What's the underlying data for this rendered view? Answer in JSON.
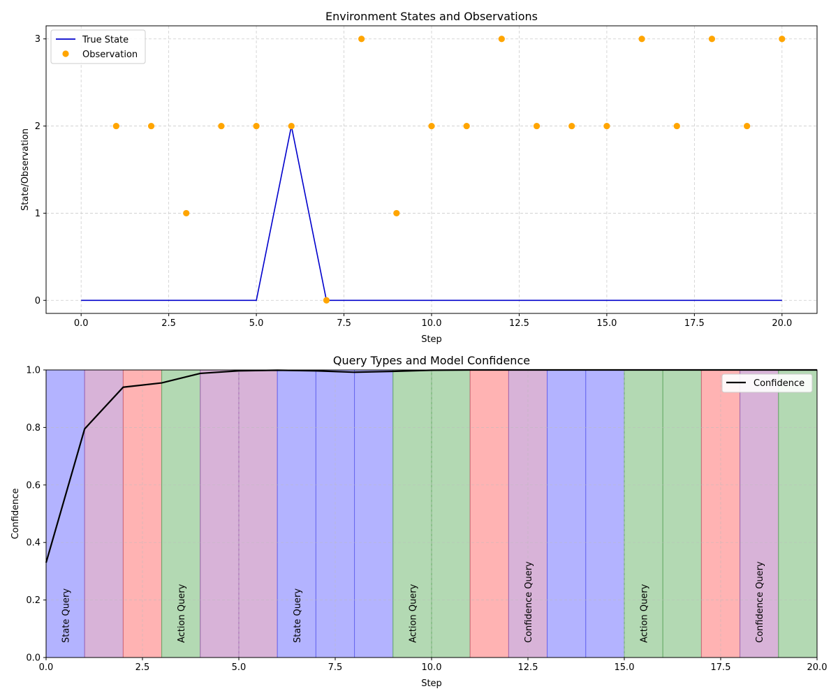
{
  "chart_data": [
    {
      "type": "line",
      "title": "Environment States and Observations",
      "xlabel": "Step",
      "ylabel": "State/Observation",
      "xlim": [
        -1,
        21
      ],
      "ylim": [
        -0.15,
        3.15
      ],
      "xticks": [
        0,
        2.5,
        5,
        7.5,
        10,
        12.5,
        15,
        17.5,
        20
      ],
      "xtick_labels": [
        "0.0",
        "2.5",
        "5.0",
        "7.5",
        "10.0",
        "12.5",
        "15.0",
        "17.5",
        "20.0"
      ],
      "yticks": [
        0,
        1,
        2,
        3
      ],
      "ytick_labels": [
        "0",
        "1",
        "2",
        "3"
      ],
      "grid": true,
      "legend_position": "top-left",
      "series": [
        {
          "name": "True State",
          "kind": "line",
          "color": "#0000cc",
          "x": [
            0,
            1,
            2,
            3,
            4,
            5,
            6,
            7,
            8,
            9,
            10,
            11,
            12,
            13,
            14,
            15,
            16,
            17,
            18,
            19,
            20
          ],
          "y": [
            0,
            0,
            0,
            0,
            0,
            0,
            2,
            0,
            0,
            0,
            0,
            0,
            0,
            0,
            0,
            0,
            0,
            0,
            0,
            0,
            0
          ]
        },
        {
          "name": "Observation",
          "kind": "scatter",
          "color": "#ffa500",
          "x": [
            1,
            2,
            3,
            4,
            5,
            6,
            7,
            8,
            9,
            10,
            11,
            12,
            13,
            14,
            15,
            16,
            17,
            18,
            19,
            20
          ],
          "y": [
            2,
            2,
            1,
            2,
            2,
            2,
            0,
            3,
            1,
            2,
            2,
            3,
            2,
            2,
            2,
            3,
            2,
            3,
            2,
            3
          ]
        }
      ]
    },
    {
      "type": "line",
      "title": "Query Types and Model Confidence",
      "xlabel": "Step",
      "ylabel": "Confidence",
      "xlim": [
        0,
        20
      ],
      "ylim": [
        0,
        1
      ],
      "xticks": [
        0,
        2.5,
        5,
        7.5,
        10,
        12.5,
        15,
        17.5,
        20
      ],
      "xtick_labels": [
        "0.0",
        "2.5",
        "5.0",
        "7.5",
        "10.0",
        "12.5",
        "15.0",
        "17.5",
        "20.0"
      ],
      "yticks": [
        0,
        0.2,
        0.4,
        0.6,
        0.8,
        1.0
      ],
      "ytick_labels": [
        "0.0",
        "0.2",
        "0.4",
        "0.6",
        "0.8",
        "1.0"
      ],
      "grid": true,
      "legend_position": "top-right",
      "query_bands": {
        "colors": {
          "blue": "#b3b3ff",
          "purple": "#d8b3d8",
          "red": "#ffb3b3",
          "green": "#b3d9b3"
        },
        "edges": {
          "blue": "#6666ee",
          "purple": "#a066b0",
          "red": "#cc6677",
          "green": "#66aa66"
        },
        "types": [
          "blue",
          "purple",
          "red",
          "green",
          "purple",
          "purple",
          "blue",
          "blue",
          "blue",
          "green",
          "green",
          "red",
          "purple",
          "blue",
          "blue",
          "green",
          "green",
          "red",
          "purple",
          "green"
        ],
        "labels": [
          {
            "step": 0,
            "text": "State Query"
          },
          {
            "step": 3,
            "text": "Action Query"
          },
          {
            "step": 6,
            "text": "State Query"
          },
          {
            "step": 9,
            "text": "Action Query"
          },
          {
            "step": 12,
            "text": "Confidence Query"
          },
          {
            "step": 15,
            "text": "Action Query"
          },
          {
            "step": 18,
            "text": "Confidence Query"
          }
        ]
      },
      "series": [
        {
          "name": "Confidence",
          "kind": "line",
          "color": "#000000",
          "x": [
            0,
            1,
            2,
            3,
            4,
            5,
            6,
            7,
            8,
            9,
            10,
            11,
            12,
            13,
            14,
            15,
            16,
            17,
            18,
            19,
            20
          ],
          "y": [
            0.33,
            0.795,
            0.94,
            0.955,
            0.988,
            0.997,
            0.999,
            0.997,
            0.992,
            0.995,
            0.999,
            1.0,
            1.0,
            1.0,
            1.0,
            1.0,
            1.0,
            1.0,
            1.0,
            1.0,
            1.0
          ]
        }
      ]
    }
  ]
}
